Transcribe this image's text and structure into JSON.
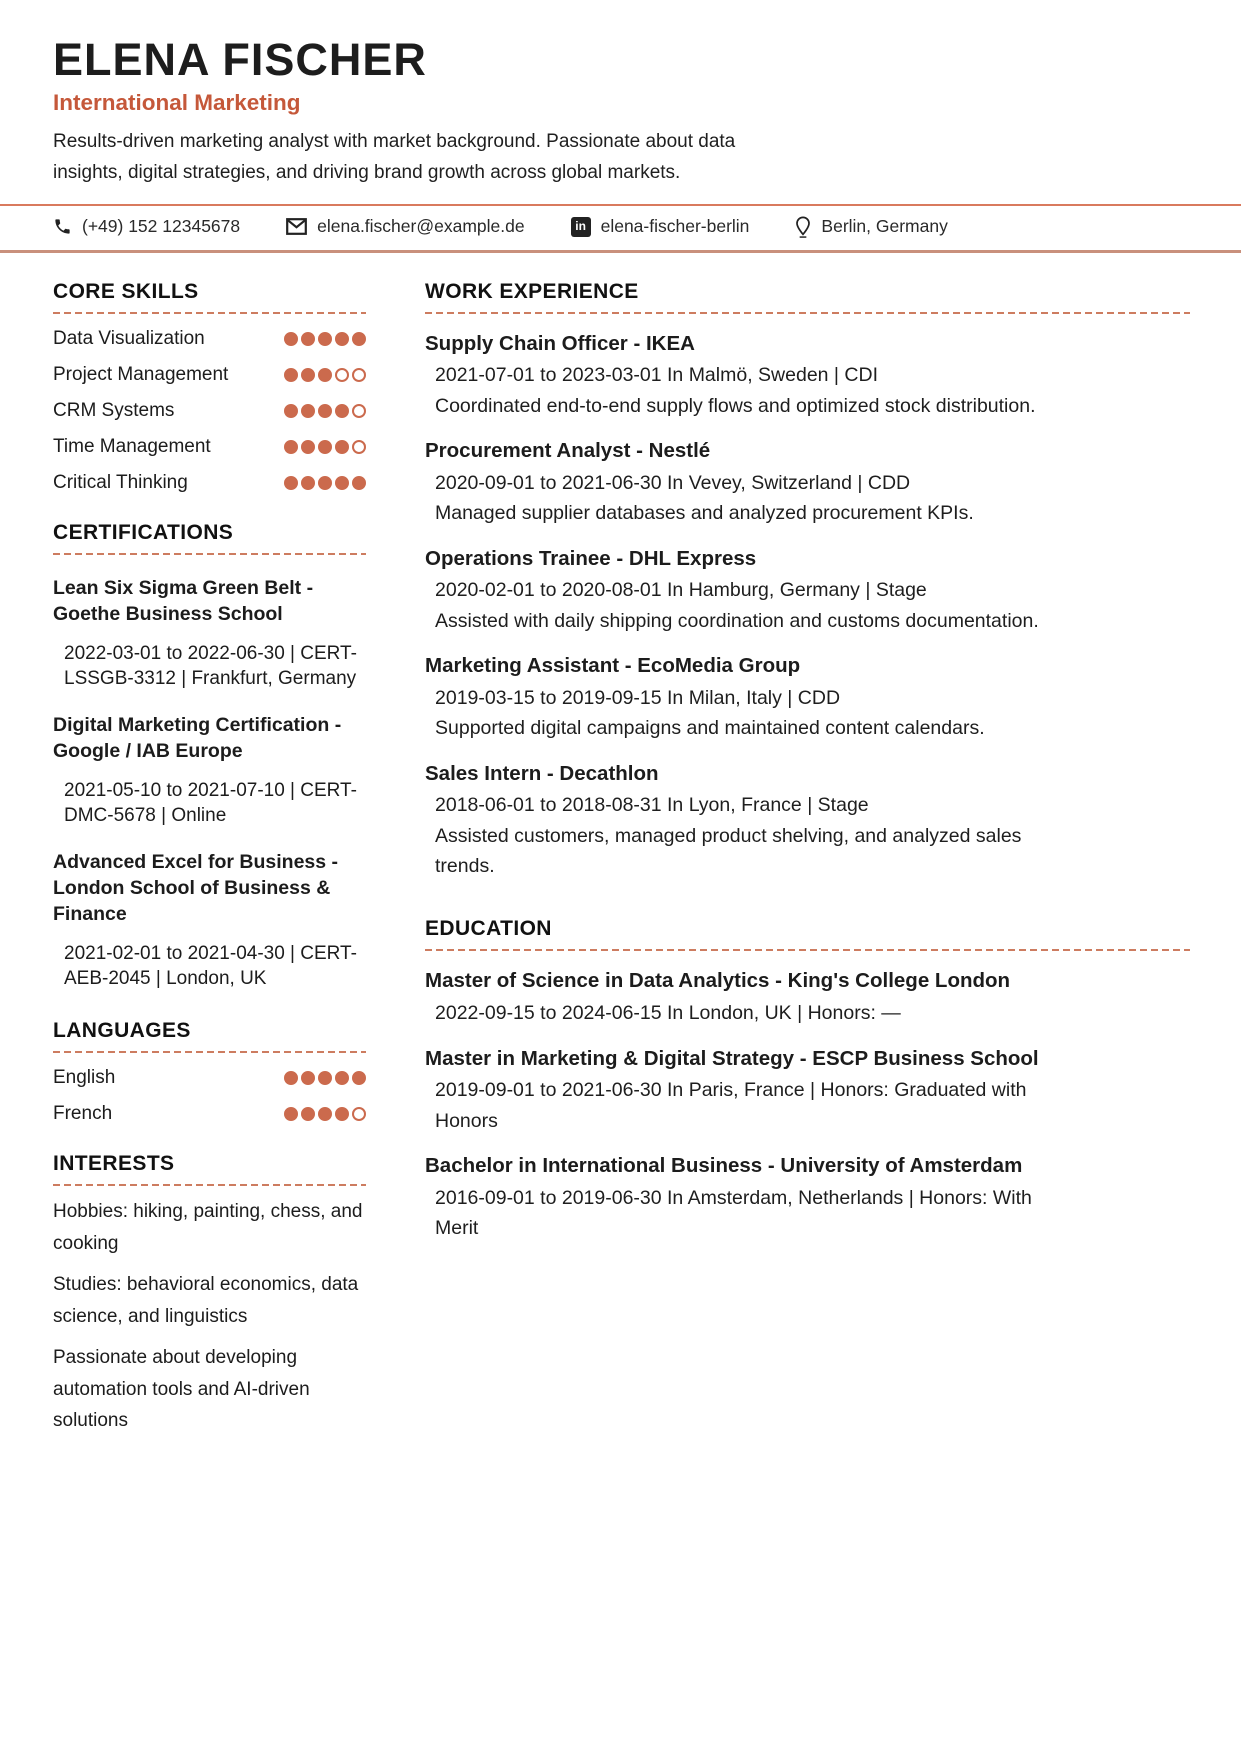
{
  "header": {
    "name": "ELENA FISCHER",
    "title": "International Marketing",
    "summary": "Results-driven marketing analyst with market background. Passionate about data insights, digital strategies, and driving brand growth across global markets."
  },
  "contact": {
    "items": [
      {
        "icon": "phone-icon",
        "text": "(+49) 152 12345678"
      },
      {
        "icon": "email-icon",
        "text": "elena.fischer@example.de"
      },
      {
        "icon": "linkedin-icon",
        "glyph": "in",
        "text": "elena-fischer-berlin"
      },
      {
        "icon": "location-icon",
        "text": "Berlin, Germany"
      }
    ]
  },
  "sidebar": {
    "core_skills": {
      "heading": "CORE SKILLS",
      "items": [
        {
          "label": "Data Visualization",
          "level": 5,
          "max": 5
        },
        {
          "label": "Project Management",
          "level": 3,
          "max": 5
        },
        {
          "label": "CRM Systems",
          "level": 4,
          "max": 5
        },
        {
          "label": "Time Management",
          "level": 4,
          "max": 5
        },
        {
          "label": "Critical Thinking",
          "level": 5,
          "max": 5
        }
      ]
    },
    "certifications": {
      "heading": "CERTIFICATIONS",
      "items": [
        {
          "title": "Lean Six Sigma Green Belt - Goethe Business School",
          "details": "2022-03-01 to 2022-06-30 | CERT-LSSGB-3312 | Frankfurt, Germany"
        },
        {
          "title": "Digital Marketing Certification - Google / IAB Europe",
          "details": "2021-05-10 to 2021-07-10 | CERT-DMC-5678 | Online"
        },
        {
          "title": "Advanced Excel for Business - London School of Business & Finance",
          "details": "2021-02-01 to 2021-04-30 | CERT-AEB-2045 | London, UK"
        }
      ]
    },
    "languages": {
      "heading": "LANGUAGES",
      "items": [
        {
          "label": "English",
          "level": 5,
          "max": 5
        },
        {
          "label": "French",
          "level": 4,
          "max": 5
        }
      ]
    },
    "interests": {
      "heading": "INTERESTS",
      "lines": [
        "Hobbies: hiking, painting, chess, and cooking",
        "Studies: behavioral economics, data science, and linguistics",
        "Passionate about developing automation tools and AI-driven solutions"
      ]
    }
  },
  "main": {
    "work": {
      "heading": "WORK EXPERIENCE",
      "items": [
        {
          "title": "Supply Chain Officer - IKEA",
          "meta": "2021-07-01 to 2023-03-01 In Malmö, Sweden | CDI",
          "description": "Coordinated end-to-end supply flows and optimized stock distribution."
        },
        {
          "title": "Procurement Analyst - Nestlé",
          "meta": "2020-09-01 to 2021-06-30 In Vevey, Switzerland | CDD",
          "description": "Managed supplier databases and analyzed procurement KPIs."
        },
        {
          "title": "Operations Trainee - DHL Express",
          "meta": "2020-02-01 to 2020-08-01 In Hamburg, Germany | Stage",
          "description": "Assisted with daily shipping coordination and customs documentation."
        },
        {
          "title": "Marketing Assistant - EcoMedia Group",
          "meta": "2019-03-15 to 2019-09-15 In Milan, Italy | CDD",
          "description": "Supported digital campaigns and maintained content calendars."
        },
        {
          "title": "Sales Intern - Decathlon",
          "meta": "2018-06-01 to 2018-08-31 In Lyon, France | Stage",
          "description": "Assisted customers, managed product shelving, and analyzed sales trends."
        }
      ]
    },
    "education": {
      "heading": "EDUCATION",
      "items": [
        {
          "title": "Master of Science in Data Analytics - King's College London",
          "meta": "2022-09-15 to 2024-06-15 In London, UK | Honors: —"
        },
        {
          "title": "Master in Marketing & Digital Strategy - ESCP Business School",
          "meta": "2019-09-01 to 2021-06-30 In Paris, France | Honors: Graduated with Honors"
        },
        {
          "title": "Bachelor in International Business - University of Amsterdam",
          "meta": "2016-09-01 to 2019-06-30 In Amsterdam, Netherlands | Honors: With Merit"
        }
      ]
    }
  },
  "colors": {
    "accent_title": "#c5583a",
    "rule_top": "#d97a5e",
    "rule_bottom": "#c9907c",
    "dashed_rule": "#cd7c60",
    "rating_dot": "#cb6a4d",
    "text": "#1c1c1c"
  }
}
